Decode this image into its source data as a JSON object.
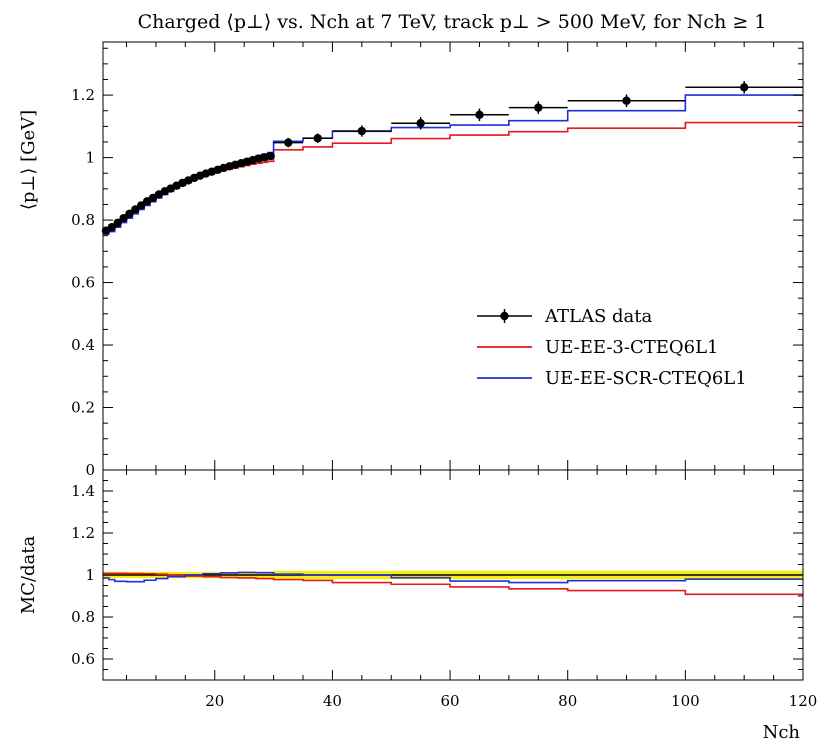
{
  "chart_data": [
    {
      "panel": "main",
      "type": "line",
      "title": "Charged ⟨p⊥⟩ vs. Nch at 7 TeV, track p⊥ > 500 MeV, for Nch ≥ 1",
      "xlabel": "Nch",
      "ylabel": "⟨p⊥⟩   [GeV]",
      "xlim": [
        1,
        120
      ],
      "ylim": [
        0,
        1.37
      ],
      "xticks": [
        "20",
        "40",
        "60",
        "80",
        "100",
        "120"
      ],
      "yticks": [
        "0",
        "0.2",
        "0.4",
        "0.6",
        "0.8",
        "1",
        "1.2"
      ],
      "legend_position": "middle-right",
      "series": [
        {
          "name": "ATLAS data",
          "color": "#000000",
          "style": "points-with-errors",
          "bins": [
            [
              1,
              2,
              0.766,
              0.01
            ],
            [
              2,
              3,
              0.777,
              0.01
            ],
            [
              3,
              4,
              0.791,
              0.01
            ],
            [
              4,
              5,
              0.806,
              0.01
            ],
            [
              5,
              6,
              0.82,
              0.01
            ],
            [
              6,
              7,
              0.834,
              0.01
            ],
            [
              7,
              8,
              0.847,
              0.01
            ],
            [
              8,
              9,
              0.86,
              0.01
            ],
            [
              9,
              10,
              0.871,
              0.01
            ],
            [
              10,
              11,
              0.882,
              0.01
            ],
            [
              11,
              12,
              0.892,
              0.01
            ],
            [
              12,
              13,
              0.901,
              0.01
            ],
            [
              13,
              14,
              0.91,
              0.01
            ],
            [
              14,
              15,
              0.919,
              0.01
            ],
            [
              15,
              16,
              0.927,
              0.01
            ],
            [
              16,
              17,
              0.935,
              0.01
            ],
            [
              17,
              18,
              0.942,
              0.01
            ],
            [
              18,
              19,
              0.949,
              0.01
            ],
            [
              19,
              20,
              0.955,
              0.01
            ],
            [
              20,
              21,
              0.961,
              0.01
            ],
            [
              21,
              22,
              0.967,
              0.01
            ],
            [
              22,
              23,
              0.972,
              0.01
            ],
            [
              23,
              24,
              0.977,
              0.01
            ],
            [
              24,
              25,
              0.982,
              0.01
            ],
            [
              25,
              26,
              0.987,
              0.01
            ],
            [
              26,
              27,
              0.992,
              0.01
            ],
            [
              27,
              28,
              0.997,
              0.01
            ],
            [
              28,
              29,
              1.001,
              0.01
            ],
            [
              29,
              30,
              1.005,
              0.01
            ],
            [
              30,
              35,
              1.048,
              0.015
            ],
            [
              35,
              40,
              1.062,
              0.015
            ],
            [
              40,
              50,
              1.085,
              0.018
            ],
            [
              50,
              60,
              1.11,
              0.02
            ],
            [
              60,
              70,
              1.137,
              0.02
            ],
            [
              70,
              80,
              1.16,
              0.02
            ],
            [
              80,
              100,
              1.182,
              0.02
            ],
            [
              100,
              120,
              1.225,
              0.02
            ]
          ]
        },
        {
          "name": "UE-EE-3-CTEQ6L1",
          "color": "#e41a1c",
          "style": "step",
          "bins": [
            [
              1,
              2,
              0.772
            ],
            [
              2,
              3,
              0.783
            ],
            [
              3,
              4,
              0.797
            ],
            [
              4,
              5,
              0.812
            ],
            [
              5,
              6,
              0.826
            ],
            [
              6,
              7,
              0.839
            ],
            [
              7,
              8,
              0.852
            ],
            [
              8,
              9,
              0.864
            ],
            [
              9,
              10,
              0.875
            ],
            [
              10,
              11,
              0.885
            ],
            [
              11,
              12,
              0.894
            ],
            [
              12,
              13,
              0.903
            ],
            [
              13,
              14,
              0.911
            ],
            [
              14,
              15,
              0.918
            ],
            [
              15,
              16,
              0.925
            ],
            [
              16,
              17,
              0.932
            ],
            [
              17,
              18,
              0.938
            ],
            [
              18,
              19,
              0.944
            ],
            [
              19,
              20,
              0.949
            ],
            [
              20,
              21,
              0.954
            ],
            [
              21,
              22,
              0.959
            ],
            [
              22,
              23,
              0.963
            ],
            [
              23,
              24,
              0.967
            ],
            [
              24,
              25,
              0.971
            ],
            [
              25,
              26,
              0.975
            ],
            [
              26,
              27,
              0.979
            ],
            [
              27,
              28,
              0.982
            ],
            [
              28,
              29,
              0.985
            ],
            [
              29,
              30,
              0.988
            ],
            [
              30,
              35,
              1.025
            ],
            [
              35,
              40,
              1.034
            ],
            [
              40,
              50,
              1.046
            ],
            [
              50,
              60,
              1.061
            ],
            [
              60,
              70,
              1.072
            ],
            [
              70,
              80,
              1.083
            ],
            [
              80,
              100,
              1.094
            ],
            [
              100,
              120,
              1.112
            ]
          ]
        },
        {
          "name": "UE-EE-SCR-CTEQ6L1",
          "color": "#1f2ee0",
          "style": "step",
          "bins": [
            [
              1,
              2,
              0.755
            ],
            [
              2,
              3,
              0.763
            ],
            [
              3,
              4,
              0.777
            ],
            [
              4,
              5,
              0.792
            ],
            [
              5,
              6,
              0.806
            ],
            [
              6,
              7,
              0.82
            ],
            [
              7,
              8,
              0.834
            ],
            [
              8,
              9,
              0.847
            ],
            [
              9,
              10,
              0.859
            ],
            [
              10,
              11,
              0.871
            ],
            [
              11,
              12,
              0.882
            ],
            [
              12,
              13,
              0.892
            ],
            [
              13,
              14,
              0.902
            ],
            [
              14,
              15,
              0.911
            ],
            [
              15,
              16,
              0.92
            ],
            [
              16,
              17,
              0.929
            ],
            [
              17,
              18,
              0.938
            ],
            [
              18,
              19,
              0.946
            ],
            [
              19,
              20,
              0.954
            ],
            [
              20,
              21,
              0.961
            ],
            [
              21,
              22,
              0.968
            ],
            [
              22,
              23,
              0.975
            ],
            [
              23,
              24,
              0.982
            ],
            [
              24,
              25,
              0.988
            ],
            [
              25,
              26,
              0.994
            ],
            [
              26,
              27,
              1.0
            ],
            [
              27,
              28,
              1.006
            ],
            [
              28,
              29,
              1.011
            ],
            [
              29,
              30,
              1.016
            ],
            [
              30,
              35,
              1.052
            ],
            [
              35,
              40,
              1.062
            ],
            [
              40,
              50,
              1.084
            ],
            [
              50,
              60,
              1.096
            ],
            [
              60,
              70,
              1.104
            ],
            [
              70,
              80,
              1.118
            ],
            [
              80,
              100,
              1.15
            ],
            [
              100,
              120,
              1.2
            ]
          ]
        }
      ]
    },
    {
      "panel": "ratio",
      "type": "line",
      "xlabel": "Nch",
      "ylabel": "MC/data",
      "xlim": [
        1,
        120
      ],
      "ylim": [
        0.5,
        1.5
      ],
      "xticks": [
        "20",
        "40",
        "60",
        "80",
        "100",
        "120"
      ],
      "yticks": [
        "0.6",
        "0.8",
        "1",
        "1.2",
        "1.4"
      ],
      "uncertainty_band": {
        "color": "#f5ee10",
        "bins": [
          [
            1,
            30,
            0.015
          ],
          [
            30,
            120,
            0.02
          ]
        ]
      },
      "series": [
        {
          "name": "UE-EE-3-CTEQ6L1",
          "color": "#e41a1c",
          "bins": [
            [
              1,
              2,
              1.008
            ],
            [
              2,
              3,
              1.008
            ],
            [
              3,
              5,
              1.008
            ],
            [
              5,
              8,
              1.007
            ],
            [
              8,
              10,
              1.006
            ],
            [
              10,
              12,
              1.004
            ],
            [
              12,
              15,
              1.0
            ],
            [
              15,
              18,
              0.995
            ],
            [
              18,
              21,
              0.992
            ],
            [
              21,
              24,
              0.988
            ],
            [
              24,
              27,
              0.986
            ],
            [
              27,
              30,
              0.983
            ],
            [
              30,
              35,
              0.978
            ],
            [
              35,
              40,
              0.974
            ],
            [
              40,
              50,
              0.964
            ],
            [
              50,
              60,
              0.956
            ],
            [
              60,
              70,
              0.943
            ],
            [
              70,
              80,
              0.934
            ],
            [
              80,
              100,
              0.926
            ],
            [
              100,
              120,
              0.908
            ]
          ]
        },
        {
          "name": "UE-EE-SCR-CTEQ6L1",
          "color": "#1f2ee0",
          "bins": [
            [
              1,
              2,
              0.986
            ],
            [
              2,
              3,
              0.978
            ],
            [
              3,
              5,
              0.97
            ],
            [
              5,
              8,
              0.968
            ],
            [
              8,
              10,
              0.975
            ],
            [
              10,
              12,
              0.983
            ],
            [
              12,
              15,
              0.992
            ],
            [
              15,
              18,
              1.0
            ],
            [
              18,
              21,
              1.006
            ],
            [
              21,
              24,
              1.01
            ],
            [
              24,
              27,
              1.012
            ],
            [
              27,
              30,
              1.011
            ],
            [
              30,
              35,
              1.004
            ],
            [
              35,
              40,
              1.0
            ],
            [
              40,
              50,
              0.999
            ],
            [
              50,
              60,
              0.987
            ],
            [
              60,
              70,
              0.971
            ],
            [
              70,
              80,
              0.964
            ],
            [
              80,
              100,
              0.973
            ],
            [
              100,
              120,
              0.98
            ]
          ]
        }
      ]
    }
  ]
}
